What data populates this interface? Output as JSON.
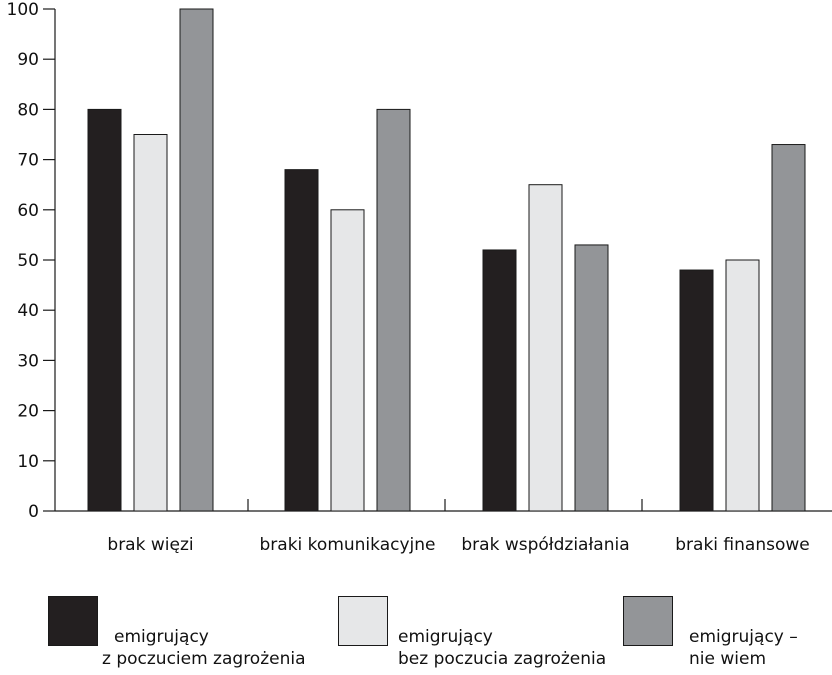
{
  "chart_data": {
    "type": "bar",
    "categories": [
      "brak więzi",
      "braki komunikacyjne",
      "brak współdziałania",
      "braki finansowe"
    ],
    "series": [
      {
        "name": "emigrujący z poczuciem zagrożenia",
        "values": [
          80,
          68,
          52,
          48
        ],
        "color": "#231f20"
      },
      {
        "name": "emigrujący bez poczucia zagrożenia",
        "values": [
          75,
          60,
          65,
          50
        ],
        "color": "#e6e7e8"
      },
      {
        "name": "emigrujący – nie wiem",
        "values": [
          100,
          80,
          53,
          73
        ],
        "color": "#939598"
      }
    ],
    "yticks": [
      0,
      10,
      20,
      30,
      40,
      50,
      60,
      70,
      80,
      90,
      100
    ],
    "ylim": [
      0,
      100
    ],
    "grid": false,
    "legend_position": "bottom"
  },
  "legend": [
    {
      "line1": "emigrujący",
      "line2": "z poczuciem zagrożenia",
      "color": "#231f20"
    },
    {
      "line1": "emigrujący",
      "line2": "bez poczucia zagrożenia",
      "color": "#e6e7e8"
    },
    {
      "line1": "emigrujący –",
      "line2": "nie wiem",
      "color": "#939598"
    }
  ]
}
